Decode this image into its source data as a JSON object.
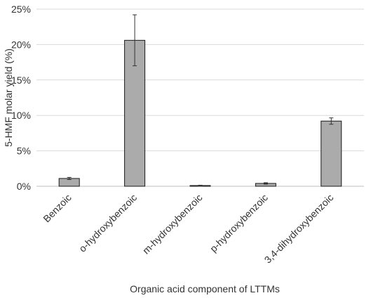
{
  "chart_data": {
    "type": "bar",
    "categories": [
      "Benzoic",
      "o-hydroxybenzoic",
      "m-hydroxybenzoic",
      "p-hydroxybenzoic",
      "3,4-dihydroxybenzoic"
    ],
    "values": [
      1.1,
      20.6,
      0.1,
      0.4,
      9.2
    ],
    "errors": [
      0.15,
      3.6,
      0.05,
      0.1,
      0.45
    ],
    "xlabel": "Organic acid component of LTTMs",
    "ylabel": "5-HMF molar yield (%)",
    "ylim": [
      0,
      25
    ],
    "yticks": [
      "0%",
      "5%",
      "10%",
      "15%",
      "20%",
      "25%"
    ],
    "grid": true,
    "bar_color": "#ababab",
    "bar_edge_color": "#1a1a1a",
    "grid_color": "#d9d9d9"
  }
}
